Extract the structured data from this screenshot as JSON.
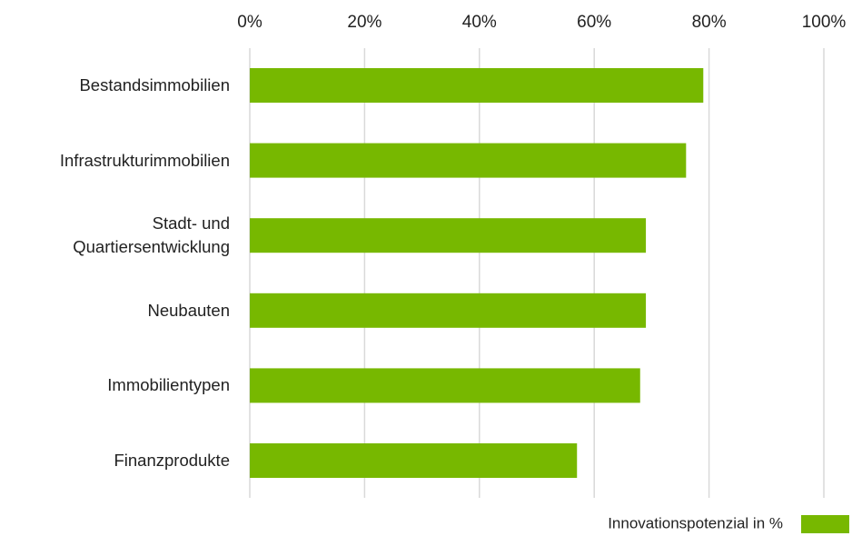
{
  "chart_data": {
    "type": "bar",
    "orientation": "horizontal",
    "categories": [
      "Bestandsimmobilien",
      "Infrastrukturimmobilien",
      "Stadt- und Quartiersentwicklung",
      "Neubauten",
      "Immobilientypen",
      "Finanzprodukte"
    ],
    "series": [
      {
        "name": "Innovationspotenzial in %",
        "color": "#77b800",
        "values": [
          79,
          76,
          69,
          69,
          68,
          57
        ]
      }
    ],
    "xlim": [
      0,
      100
    ],
    "xticks": [
      {
        "value": 0,
        "label": "0%"
      },
      {
        "value": 20,
        "label": "20%"
      },
      {
        "value": 40,
        "label": "40%"
      },
      {
        "value": 60,
        "label": "60%"
      },
      {
        "value": 80,
        "label": "80%"
      },
      {
        "value": 100,
        "label": "100%"
      }
    ],
    "grid": true,
    "legend": "bottom-right"
  }
}
